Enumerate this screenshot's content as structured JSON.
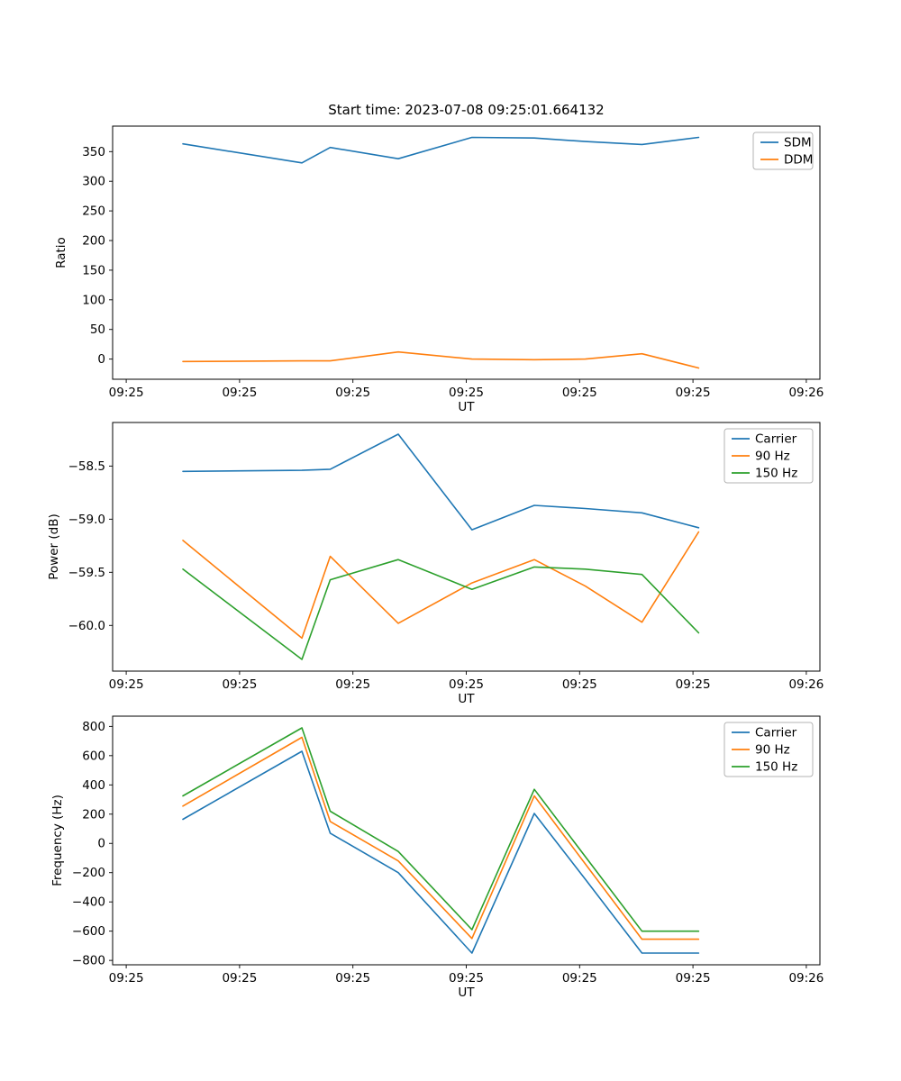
{
  "figure": {
    "title": "Start time: 2023-07-08 09:25:01.664132"
  },
  "chart_data": [
    {
      "type": "line",
      "title": "Start time: 2023-07-08 09:25:01.664132",
      "xlabel": "UT",
      "ylabel": "Ratio",
      "grid": false,
      "legend_position": "upper right",
      "xlim": [
        -1.2,
        61.2
      ],
      "ylim": [
        -34,
        393
      ],
      "x_tick_values": [
        0,
        10,
        20,
        30,
        40,
        50,
        60
      ],
      "x_tick_labels": [
        "09:25",
        "09:25",
        "09:25",
        "09:25",
        "09:25",
        "09:25",
        "09:26"
      ],
      "y_tick_values": [
        0,
        50,
        100,
        150,
        200,
        250,
        300,
        350
      ],
      "y_tick_labels": [
        "0",
        "50",
        "100",
        "150",
        "200",
        "250",
        "300",
        "350"
      ],
      "x": [
        5,
        15.5,
        18,
        24,
        30.5,
        36,
        40.5,
        45.5,
        50.5
      ],
      "series": [
        {
          "name": "SDM",
          "color": "#1f77b4",
          "values": [
            363,
            331,
            357,
            338,
            374,
            373,
            367,
            362,
            374
          ]
        },
        {
          "name": "DDM",
          "color": "#ff7f0e",
          "values": [
            -4,
            -3,
            -3,
            12,
            0,
            -1,
            0,
            9,
            -15
          ]
        }
      ]
    },
    {
      "type": "line",
      "title": "",
      "xlabel": "UT",
      "ylabel": "Power (dB)",
      "grid": false,
      "legend_position": "upper right",
      "xlim": [
        -1.2,
        61.2
      ],
      "ylim": [
        -60.43,
        -58.09
      ],
      "x_tick_values": [
        0,
        10,
        20,
        30,
        40,
        50,
        60
      ],
      "x_tick_labels": [
        "09:25",
        "09:25",
        "09:25",
        "09:25",
        "09:25",
        "09:25",
        "09:26"
      ],
      "y_tick_values": [
        -60.0,
        -59.5,
        -59.0,
        -58.5
      ],
      "y_tick_labels": [
        "−60.0",
        "−59.5",
        "−59.0",
        "−58.5"
      ],
      "x": [
        5,
        15.5,
        18,
        24,
        30.5,
        36,
        40.5,
        45.5,
        50.5
      ],
      "series": [
        {
          "name": "Carrier",
          "color": "#1f77b4",
          "values": [
            -58.55,
            -58.54,
            -58.53,
            -58.2,
            -59.1,
            -58.87,
            -58.9,
            -58.94,
            -59.08
          ]
        },
        {
          "name": "90 Hz",
          "color": "#ff7f0e",
          "values": [
            -59.2,
            -60.12,
            -59.35,
            -59.98,
            -59.6,
            -59.38,
            -59.63,
            -59.97,
            -59.12
          ]
        },
        {
          "name": "150 Hz",
          "color": "#2ca02c",
          "values": [
            -59.47,
            -60.32,
            -59.57,
            -59.38,
            -59.66,
            -59.45,
            -59.47,
            -59.52,
            -60.07
          ]
        }
      ]
    },
    {
      "type": "line",
      "title": "",
      "xlabel": "UT",
      "ylabel": "Frequency (Hz)",
      "grid": false,
      "legend_position": "upper right",
      "xlim": [
        -1.2,
        61.2
      ],
      "ylim": [
        -830,
        870
      ],
      "x_tick_values": [
        0,
        10,
        20,
        30,
        40,
        50,
        60
      ],
      "x_tick_labels": [
        "09:25",
        "09:25",
        "09:25",
        "09:25",
        "09:25",
        "09:25",
        "09:26"
      ],
      "y_tick_values": [
        -800,
        -600,
        -400,
        -200,
        0,
        200,
        400,
        600,
        800
      ],
      "y_tick_labels": [
        "−800",
        "−600",
        "−400",
        "−200",
        "0",
        "200",
        "400",
        "600",
        "800"
      ],
      "x": [
        5,
        15.5,
        18,
        24,
        30.5,
        36,
        40.5,
        45.5,
        50.5
      ],
      "series": [
        {
          "name": "Carrier",
          "color": "#1f77b4",
          "values": [
            165,
            630,
            70,
            -200,
            -750,
            205,
            -245,
            -750,
            -750
          ]
        },
        {
          "name": "90 Hz",
          "color": "#ff7f0e",
          "values": [
            255,
            725,
            150,
            -120,
            -650,
            325,
            -140,
            -655,
            -655
          ]
        },
        {
          "name": "150 Hz",
          "color": "#2ca02c",
          "values": [
            325,
            790,
            220,
            -55,
            -590,
            370,
            -90,
            -600,
            -600
          ]
        }
      ]
    }
  ]
}
